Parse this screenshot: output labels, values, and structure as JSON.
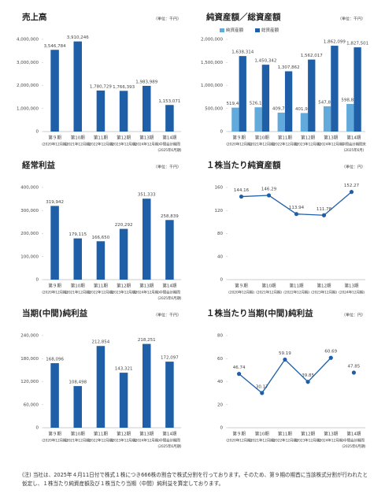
{
  "chart_data": [
    {
      "type": "bar",
      "title": "売上高",
      "unit": "（単位：千円）",
      "categories": [
        "第９期",
        "第10期",
        "第11期",
        "第12期",
        "第13期",
        "第14期"
      ],
      "category_notes": [
        [
          "(2020年12月期)"
        ],
        [
          "(2021年12月期)"
        ],
        [
          "(2022年12月期)"
        ],
        [
          "(2023年12月期)"
        ],
        [
          "(2024年12月期)"
        ],
        [
          "中間会計期間",
          "(2025年6月期)"
        ]
      ],
      "values": [
        3546784,
        3910246,
        1780729,
        1766393,
        1983989,
        1153071
      ],
      "value_labels": [
        "3,546,784",
        "3,910,246",
        "1,780,729",
        "1,766,393",
        "1,983,989",
        "1,153,071"
      ],
      "color": "#1f5fa8",
      "ylim": [
        0,
        4000000
      ],
      "yticks": [
        0,
        {
          "value": 1000000,
          "label": "1,000,000"
        },
        {
          "value": 2000000,
          "label": "2,000,000"
        },
        {
          "value": 3000000,
          "label": "3,000,000"
        },
        {
          "value": 4000000,
          "label": "4,000,000"
        }
      ]
    },
    {
      "type": "bar",
      "title": "純資産額／総資産額",
      "unit": "（単位：千円）",
      "categories": [
        "第９期",
        "第10期",
        "第11期",
        "第12期",
        "第13期",
        "第14期"
      ],
      "category_notes": [
        [
          "(2020年12月期)"
        ],
        [
          "(2021年12月期)"
        ],
        [
          "(2022年12月期)"
        ],
        [
          "(2023年12月期)"
        ],
        [
          "(2024年12月期)"
        ],
        [
          "中間会計期間末",
          "(2025年6月)"
        ]
      ],
      "series": [
        {
          "name": "純資産額",
          "color": "#62a9dc",
          "values": [
            519468,
            526106,
            409791,
            401988,
            547826,
            598802
          ],
          "value_labels": [
            "519,468",
            "526,106",
            "409,791",
            "401,988",
            "547,826",
            "598,802"
          ]
        },
        {
          "name": "総資産額",
          "color": "#1f5fa8",
          "values": [
            1638314,
            1450342,
            1307862,
            1562017,
            1862099,
            1827501
          ],
          "value_labels": [
            "1,638,314",
            "1,450,342",
            "1,307,862",
            "1,562,017",
            "1,862,099",
            "1,827,501"
          ]
        }
      ],
      "ylim": [
        0,
        2000000
      ],
      "yticks": [
        0,
        {
          "value": 500000,
          "label": "500,000"
        },
        {
          "value": 1000000,
          "label": "1,000,000"
        },
        {
          "value": 1500000,
          "label": "1,500,000"
        },
        {
          "value": 2000000,
          "label": "2,000,000"
        }
      ]
    },
    {
      "type": "bar",
      "title": "経常利益",
      "unit": "（単位：千円）",
      "categories": [
        "第９期",
        "第10期",
        "第11期",
        "第12期",
        "第13期",
        "第14期"
      ],
      "category_notes": [
        [
          "(2020年12月期)"
        ],
        [
          "(2021年12月期)"
        ],
        [
          "(2022年12月期)"
        ],
        [
          "(2023年12月期)"
        ],
        [
          "(2024年12月期)"
        ],
        [
          "中間会計期間",
          "(2025年6月期)"
        ]
      ],
      "values": [
        319942,
        179115,
        166650,
        220292,
        351333,
        258839
      ],
      "value_labels": [
        "319,942",
        "179,115",
        "166,650",
        "220,292",
        "351,333",
        "258,839"
      ],
      "color": "#1f5fa8",
      "ylim": [
        0,
        400000
      ],
      "yticks": [
        0,
        {
          "value": 100000,
          "label": "100,000"
        },
        {
          "value": 200000,
          "label": "200,000"
        },
        {
          "value": 300000,
          "label": "300,000"
        },
        {
          "value": 400000,
          "label": "400,000"
        }
      ]
    },
    {
      "type": "line",
      "title": "１株当たり純資産額",
      "unit": "（単位：円）",
      "categories": [
        "第９期",
        "第10期",
        "第11期",
        "第12期",
        "第13期"
      ],
      "category_notes": [
        [
          "(2020年12月期)"
        ],
        [
          "(2021年12月期)"
        ],
        [
          "(2022年12月期)"
        ],
        [
          "(2023年12月期)"
        ],
        [
          "(2024年12月期)"
        ]
      ],
      "series": [
        {
          "color": "#1f5fa8",
          "values": [
            144.16,
            146.29,
            113.94,
            111.78,
            152.27
          ]
        }
      ],
      "ylim": [
        0,
        160
      ],
      "yticks": [
        0,
        40,
        80,
        120,
        160
      ]
    },
    {
      "type": "bar",
      "title": "当期(中間)純利益",
      "unit": "（単位：千円）",
      "categories": [
        "第９期",
        "第10期",
        "第11期",
        "第12期",
        "第13期",
        "第14期"
      ],
      "category_notes": [
        [
          "(2020年12月期)"
        ],
        [
          "(2021年12月期)"
        ],
        [
          "(2022年12月期)"
        ],
        [
          "(2023年12月期)"
        ],
        [
          "(2024年12月期)"
        ],
        [
          "中間会計期間",
          "(2025年6月期)"
        ]
      ],
      "values": [
        168096,
        108498,
        212854,
        143321,
        218251,
        172097
      ],
      "value_labels": [
        "168,096",
        "108,498",
        "212,854",
        "143,321",
        "218,251",
        "172,097"
      ],
      "color": "#1f5fa8",
      "ylim": [
        0,
        240000
      ],
      "yticks": [
        0,
        {
          "value": 60000,
          "label": "60,000"
        },
        {
          "value": 120000,
          "label": "120,000"
        },
        {
          "value": 180000,
          "label": "180,000"
        },
        {
          "value": 240000,
          "label": "240,000"
        }
      ]
    },
    {
      "type": "line",
      "title": "１株当たり当期(中間)純利益",
      "unit": "（単位：円）",
      "categories": [
        "第９期",
        "第10期",
        "第11期",
        "第12期",
        "第13期",
        "第14期"
      ],
      "category_notes": [
        [
          "(2020年12月期)"
        ],
        [
          "(2021年12月期)"
        ],
        [
          "(2022年12月期)"
        ],
        [
          "(2023年12月期)"
        ],
        [
          "(2024年12月期)"
        ],
        [
          "中間会計期間",
          "(2025年6月期)"
        ]
      ],
      "series": [
        {
          "color": "#1f5fa8",
          "values": [
            46.74,
            30.17,
            59.19,
            39.85,
            60.69,
            null
          ]
        },
        {
          "color": "#1f5fa8",
          "values": [
            null,
            null,
            null,
            null,
            null,
            47.85
          ]
        }
      ],
      "ylim": [
        0,
        80
      ],
      "yticks": [
        0,
        20,
        40,
        60,
        80
      ]
    }
  ],
  "footnote": "(注) 当社は、2025年４月11日付で株式１株につき666株の割合で株式分割を行っております。そのため、第９期の期首に当該株式分割が行われたと仮定し、１株当たり純資産額及び１株当たり当期（中間）純利益を算定しております。"
}
